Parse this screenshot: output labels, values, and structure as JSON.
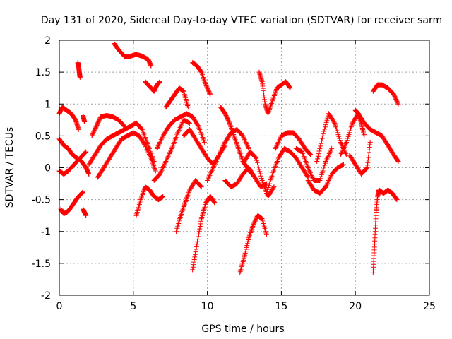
{
  "chart_data": {
    "type": "scatter",
    "title": "Day 131 of 2020, Sidereal Day-to-day VTEC variation (SDTVAR) for receiver sarm",
    "xlabel": "GPS time / hours",
    "ylabel": "SDTVAR / TECUs",
    "xlim": [
      0,
      25
    ],
    "ylim": [
      -2,
      2
    ],
    "x_ticks": [
      "0",
      "5",
      "10",
      "15",
      "20",
      "25"
    ],
    "y_ticks": [
      "2",
      "1.5",
      "1",
      "0.5",
      "0",
      "-0.5",
      "-1",
      "-1.5",
      "-2"
    ],
    "grid": true,
    "marker": "+",
    "color": "#ff0000",
    "series": [
      {
        "name": "track-1",
        "x": [
          0.0,
          0.3,
          0.6,
          0.9,
          1.2,
          1.5,
          1.8,
          2.0
        ],
        "y": [
          0.45,
          0.35,
          0.3,
          0.2,
          0.15,
          0.1,
          0.0,
          -0.1
        ]
      },
      {
        "name": "track-2",
        "x": [
          0.0,
          0.3,
          0.6,
          1.0,
          1.4,
          1.8
        ],
        "y": [
          -0.05,
          -0.1,
          -0.05,
          0.05,
          0.15,
          0.25
        ]
      },
      {
        "name": "track-3",
        "x": [
          0.1,
          0.3,
          0.5,
          0.7,
          1.0,
          1.3,
          1.6
        ],
        "y": [
          -0.65,
          -0.72,
          -0.7,
          -0.65,
          -0.55,
          -0.45,
          -0.38
        ]
      },
      {
        "name": "track-4",
        "x": [
          0.0,
          0.2,
          0.5,
          0.8,
          1.1,
          1.3
        ],
        "y": [
          0.85,
          0.95,
          0.9,
          0.85,
          0.75,
          0.6
        ]
      },
      {
        "name": "track-5",
        "x": [
          1.6,
          1.7,
          1.8
        ],
        "y": [
          -0.65,
          -0.7,
          -0.75
        ]
      },
      {
        "name": "track-6",
        "x": [
          1.25,
          1.3,
          1.35,
          1.4
        ],
        "y": [
          1.65,
          1.6,
          1.5,
          1.42
        ]
      },
      {
        "name": "track-7",
        "x": [
          1.6,
          1.7
        ],
        "y": [
          0.82,
          0.72
        ]
      },
      {
        "name": "track-8",
        "x": [
          2.0,
          2.4,
          2.8,
          3.2,
          3.6,
          4.0,
          4.4,
          4.8,
          5.2,
          5.6,
          6.0,
          6.4
        ],
        "y": [
          0.05,
          0.2,
          0.35,
          0.45,
          0.5,
          0.55,
          0.6,
          0.65,
          0.7,
          0.6,
          0.35,
          0.1
        ]
      },
      {
        "name": "track-9",
        "x": [
          2.2,
          2.5,
          2.8,
          3.2,
          3.6,
          4.0,
          4.4
        ],
        "y": [
          0.5,
          0.65,
          0.8,
          0.82,
          0.8,
          0.75,
          0.65
        ]
      },
      {
        "name": "track-10",
        "x": [
          2.6,
          3.0,
          3.4,
          3.8,
          4.2,
          4.6,
          5.0,
          5.4,
          5.8,
          6.2,
          6.5
        ],
        "y": [
          -0.15,
          0.0,
          0.15,
          0.3,
          0.45,
          0.5,
          0.55,
          0.5,
          0.35,
          0.15,
          -0.05
        ]
      },
      {
        "name": "track-11",
        "x": [
          3.7,
          4.0,
          4.4,
          4.8,
          5.2,
          5.6,
          6.0,
          6.2
        ],
        "y": [
          1.95,
          1.85,
          1.75,
          1.75,
          1.78,
          1.75,
          1.7,
          1.6
        ]
      },
      {
        "name": "track-12",
        "x": [
          5.8,
          6.0,
          6.2,
          6.4,
          6.6,
          6.8
        ],
        "y": [
          1.35,
          1.3,
          1.25,
          1.2,
          1.3,
          1.35
        ]
      },
      {
        "name": "track-13",
        "x": [
          5.2,
          5.5,
          5.8,
          6.1,
          6.4,
          6.7,
          7.0
        ],
        "y": [
          -0.75,
          -0.5,
          -0.3,
          -0.35,
          -0.45,
          -0.5,
          -0.45
        ]
      },
      {
        "name": "track-14",
        "x": [
          6.6,
          7.0,
          7.4,
          7.8,
          8.2,
          8.6,
          9.0,
          9.4,
          9.8
        ],
        "y": [
          0.3,
          0.5,
          0.65,
          0.75,
          0.8,
          0.85,
          0.8,
          0.65,
          0.4
        ]
      },
      {
        "name": "track-15",
        "x": [
          6.4,
          6.8,
          7.2,
          7.6,
          8.0,
          8.4,
          8.8
        ],
        "y": [
          -0.2,
          -0.1,
          0.1,
          0.3,
          0.55,
          0.75,
          0.7
        ]
      },
      {
        "name": "track-16",
        "x": [
          7.2,
          7.5,
          7.8,
          8.1,
          8.4,
          8.7
        ],
        "y": [
          0.95,
          1.05,
          1.15,
          1.25,
          1.2,
          0.95
        ]
      },
      {
        "name": "track-17",
        "x": [
          7.9,
          8.2,
          8.5,
          8.8,
          9.2,
          9.6
        ],
        "y": [
          -1.0,
          -0.75,
          -0.55,
          -0.35,
          -0.2,
          -0.3
        ]
      },
      {
        "name": "track-18",
        "x": [
          9.0,
          9.3,
          9.6,
          9.9,
          10.2,
          10.5
        ],
        "y": [
          -1.6,
          -1.2,
          -0.8,
          -0.55,
          -0.45,
          -0.55
        ]
      },
      {
        "name": "track-19",
        "x": [
          8.4,
          8.8,
          9.2,
          9.6,
          10.0,
          10.4,
          10.8,
          11.2
        ],
        "y": [
          0.5,
          0.6,
          0.45,
          0.3,
          0.15,
          0.05,
          0.2,
          0.35
        ]
      },
      {
        "name": "track-20",
        "x": [
          9.0,
          9.3,
          9.6,
          9.9,
          10.2
        ],
        "y": [
          1.65,
          1.6,
          1.5,
          1.3,
          1.15
        ]
      },
      {
        "name": "track-21",
        "x": [
          10.0,
          10.4,
          10.8,
          11.2,
          11.6,
          12.0,
          12.4,
          12.8
        ],
        "y": [
          -0.2,
          0.0,
          0.2,
          0.4,
          0.55,
          0.6,
          0.5,
          0.3
        ]
      },
      {
        "name": "track-22",
        "x": [
          10.9,
          11.2,
          11.5,
          11.8,
          12.1,
          12.4,
          12.7,
          13.0
        ],
        "y": [
          0.95,
          0.85,
          0.7,
          0.5,
          0.3,
          0.1,
          0.0,
          -0.1
        ]
      },
      {
        "name": "track-23",
        "x": [
          11.2,
          11.6,
          12.0,
          12.4,
          12.8,
          13.2,
          13.6,
          14.0
        ],
        "y": [
          -0.2,
          -0.3,
          -0.25,
          -0.1,
          0.0,
          -0.15,
          -0.3,
          -0.25
        ]
      },
      {
        "name": "track-24",
        "x": [
          12.2,
          12.5,
          12.8,
          13.1,
          13.4,
          13.7,
          14.0
        ],
        "y": [
          -1.65,
          -1.4,
          -1.1,
          -0.9,
          -0.75,
          -0.8,
          -1.05
        ]
      },
      {
        "name": "track-25",
        "x": [
          12.5,
          12.9,
          13.3,
          13.7,
          14.1,
          14.5
        ],
        "y": [
          0.1,
          0.25,
          0.15,
          -0.2,
          -0.45,
          -0.3
        ]
      },
      {
        "name": "track-26",
        "x": [
          13.5,
          13.7,
          13.9,
          14.1,
          14.4,
          14.7,
          15.0,
          15.3,
          15.6
        ],
        "y": [
          1.5,
          1.35,
          1.0,
          0.85,
          1.05,
          1.25,
          1.3,
          1.35,
          1.25
        ]
      },
      {
        "name": "track-27",
        "x": [
          14.0,
          14.4,
          14.8,
          15.2,
          15.6,
          16.0,
          16.4,
          16.8
        ],
        "y": [
          -0.4,
          -0.1,
          0.15,
          0.3,
          0.25,
          0.15,
          0.0,
          -0.15
        ]
      },
      {
        "name": "track-28",
        "x": [
          14.6,
          15.0,
          15.4,
          15.8,
          16.2,
          16.6,
          17.0
        ],
        "y": [
          0.3,
          0.5,
          0.55,
          0.55,
          0.45,
          0.3,
          0.2
        ]
      },
      {
        "name": "track-29",
        "x": [
          16.0,
          16.4,
          16.8,
          17.2,
          17.6,
          18.0,
          18.4
        ],
        "y": [
          0.3,
          0.25,
          0.0,
          -0.2,
          -0.2,
          0.1,
          0.3
        ]
      },
      {
        "name": "track-30",
        "x": [
          17.4,
          17.8,
          18.2,
          18.6,
          19.0,
          19.4
        ],
        "y": [
          0.1,
          0.5,
          0.85,
          0.7,
          0.4,
          0.2
        ]
      },
      {
        "name": "track-31",
        "x": [
          16.8,
          17.2,
          17.6,
          18.0,
          18.4,
          18.8,
          19.2
        ],
        "y": [
          -0.2,
          -0.35,
          -0.4,
          -0.3,
          -0.1,
          0.0,
          0.05
        ]
      },
      {
        "name": "track-32",
        "x": [
          19.0,
          19.4,
          19.8,
          20.2,
          20.6,
          21.0,
          21.4,
          21.8,
          22.2,
          22.6,
          22.9
        ],
        "y": [
          0.2,
          0.4,
          0.7,
          0.85,
          0.7,
          0.6,
          0.55,
          0.5,
          0.35,
          0.2,
          0.1
        ]
      },
      {
        "name": "track-33",
        "x": [
          19.6,
          20.0,
          20.4,
          20.8,
          21.0
        ],
        "y": [
          0.2,
          0.05,
          -0.1,
          0.0,
          0.4
        ]
      },
      {
        "name": "track-34",
        "x": [
          20.0,
          20.2,
          20.4,
          20.6
        ],
        "y": [
          0.9,
          0.85,
          0.7,
          0.5
        ]
      },
      {
        "name": "track-35",
        "x": [
          21.2,
          21.5,
          21.8,
          22.2,
          22.6,
          22.9
        ],
        "y": [
          1.2,
          1.3,
          1.3,
          1.25,
          1.15,
          1.0
        ]
      },
      {
        "name": "track-36",
        "x": [
          21.2,
          21.3,
          21.4,
          21.5,
          21.6
        ],
        "y": [
          -1.65,
          -1.2,
          -0.7,
          -0.45,
          -0.35
        ]
      },
      {
        "name": "track-37",
        "x": [
          21.6,
          21.9,
          22.2,
          22.5,
          22.8
        ],
        "y": [
          -0.35,
          -0.4,
          -0.35,
          -0.4,
          -0.5
        ]
      }
    ]
  }
}
